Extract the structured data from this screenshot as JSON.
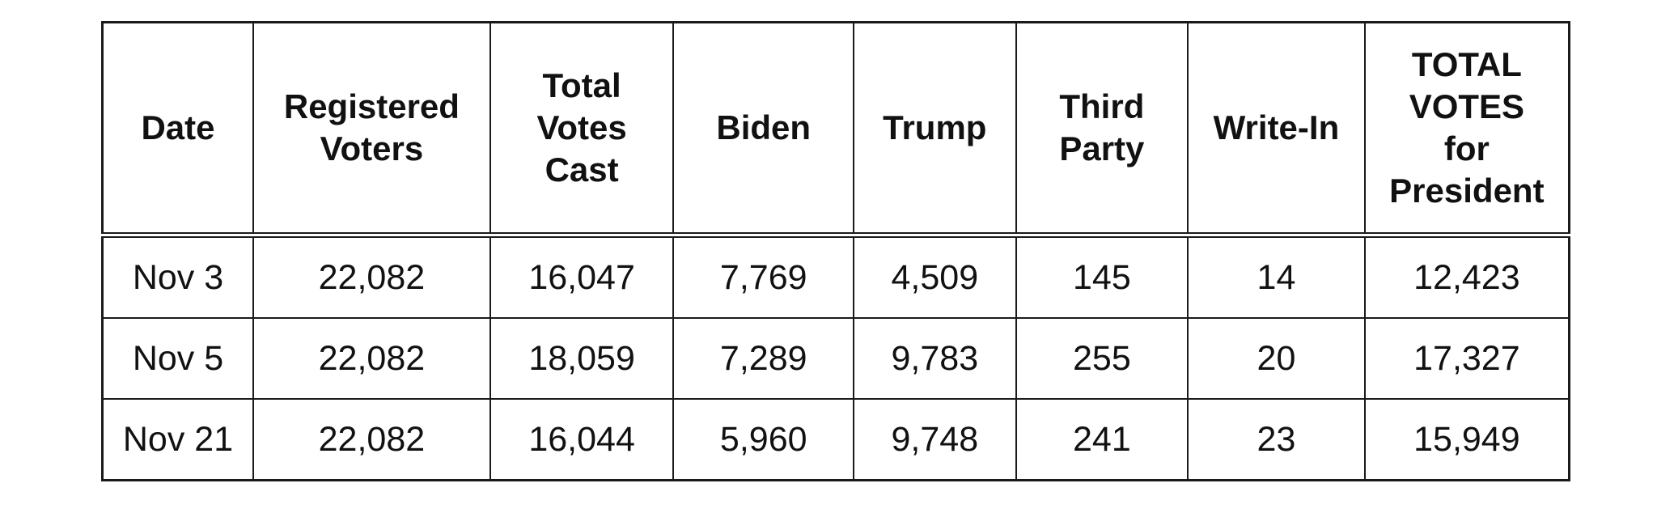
{
  "table": {
    "headers": [
      [
        "Date"
      ],
      [
        "Registered",
        "Voters"
      ],
      [
        "Total",
        "Votes",
        "Cast"
      ],
      [
        "Biden"
      ],
      [
        "Trump"
      ],
      [
        "Third",
        "Party"
      ],
      [
        "Write-In"
      ],
      [
        "TOTAL",
        "VOTES",
        "for",
        "President"
      ]
    ],
    "rows": [
      [
        "Nov 3",
        "22,082",
        "16,047",
        "7,769",
        "4,509",
        "145",
        "14",
        "12,423"
      ],
      [
        "Nov 5",
        "22,082",
        "18,059",
        "7,289",
        "9,783",
        "255",
        "20",
        "17,327"
      ],
      [
        "Nov 21",
        "22,082",
        "16,044",
        "5,960",
        "9,748",
        "241",
        "23",
        "15,949"
      ]
    ]
  }
}
